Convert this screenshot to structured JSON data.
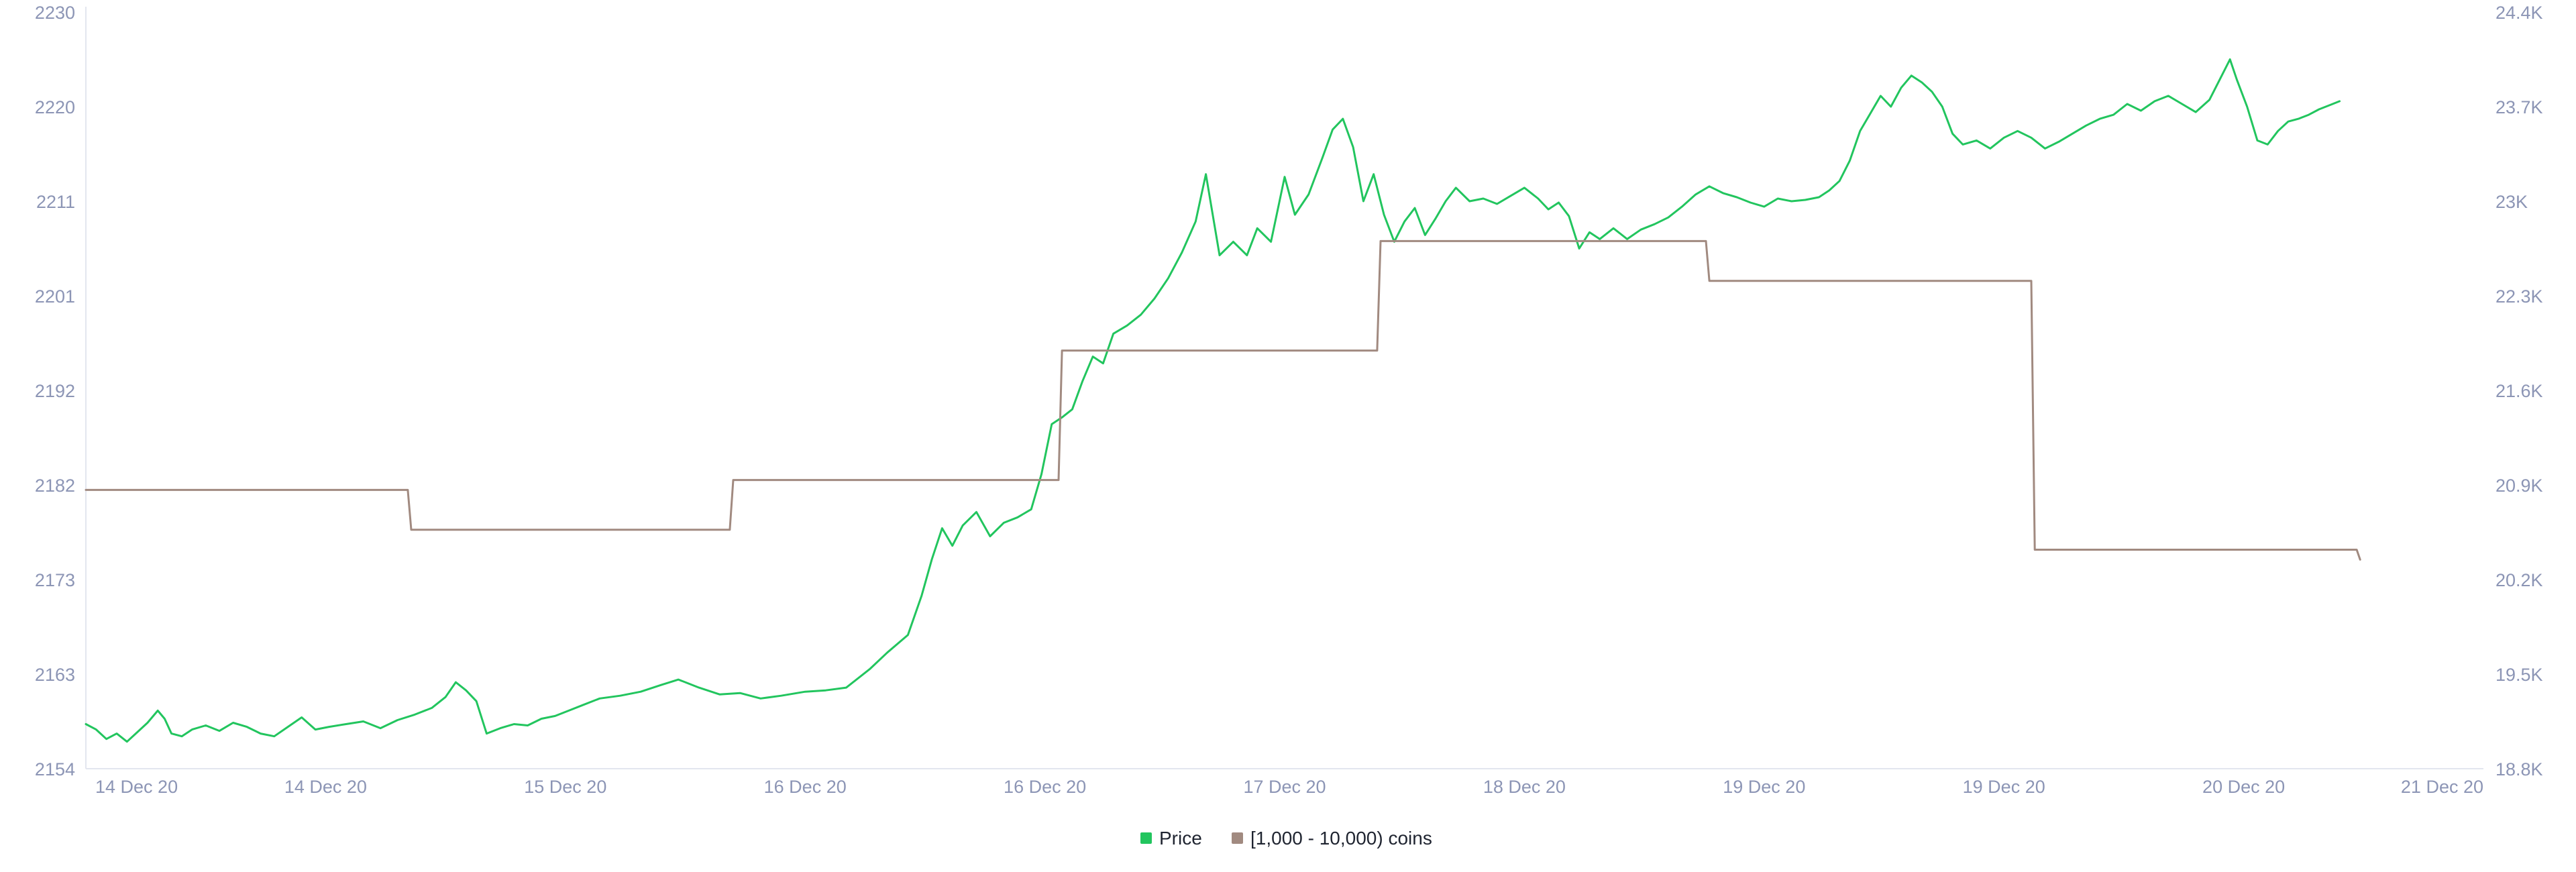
{
  "chart_data": {
    "type": "line",
    "x_ticks": [
      "14 Dec 20",
      "14 Dec 20",
      "15 Dec 20",
      "16 Dec 20",
      "16 Dec 20",
      "17 Dec 20",
      "18 Dec 20",
      "19 Dec 20",
      "19 Dec 20",
      "20 Dec 20",
      "21 Dec 20"
    ],
    "y_left_ticks": [
      "2230",
      "2220",
      "2211",
      "2201",
      "2192",
      "2182",
      "2173",
      "2163",
      "2154"
    ],
    "y_right_ticks": [
      "24.4K",
      "23.7K",
      "23K",
      "22.3K",
      "21.6K",
      "20.9K",
      "20.2K",
      "19.5K",
      "18.8K"
    ],
    "y_left_range": [
      2154,
      2230
    ],
    "y_right_range": [
      18800,
      24400
    ],
    "x_range_days": [
      0,
      7
    ],
    "grid": false,
    "legend_position": "bottom-center",
    "series": [
      {
        "name": "Price",
        "axis": "right",
        "color": "#22c55e",
        "points": [
          [
            0.0,
            19130
          ],
          [
            0.03,
            19090
          ],
          [
            0.06,
            19020
          ],
          [
            0.09,
            19060
          ],
          [
            0.12,
            19000
          ],
          [
            0.15,
            19070
          ],
          [
            0.18,
            19140
          ],
          [
            0.21,
            19230
          ],
          [
            0.23,
            19170
          ],
          [
            0.25,
            19060
          ],
          [
            0.28,
            19040
          ],
          [
            0.31,
            19090
          ],
          [
            0.35,
            19120
          ],
          [
            0.39,
            19080
          ],
          [
            0.43,
            19140
          ],
          [
            0.47,
            19110
          ],
          [
            0.51,
            19060
          ],
          [
            0.55,
            19040
          ],
          [
            0.59,
            19110
          ],
          [
            0.63,
            19180
          ],
          [
            0.67,
            19090
          ],
          [
            0.71,
            19110
          ],
          [
            0.76,
            19130
          ],
          [
            0.81,
            19150
          ],
          [
            0.86,
            19100
          ],
          [
            0.91,
            19160
          ],
          [
            0.96,
            19200
          ],
          [
            1.01,
            19250
          ],
          [
            1.05,
            19330
          ],
          [
            1.08,
            19440
          ],
          [
            1.11,
            19380
          ],
          [
            1.14,
            19300
          ],
          [
            1.17,
            19060
          ],
          [
            1.21,
            19100
          ],
          [
            1.25,
            19130
          ],
          [
            1.29,
            19120
          ],
          [
            1.33,
            19170
          ],
          [
            1.37,
            19190
          ],
          [
            1.41,
            19230
          ],
          [
            1.45,
            19270
          ],
          [
            1.5,
            19320
          ],
          [
            1.56,
            19340
          ],
          [
            1.62,
            19370
          ],
          [
            1.68,
            19420
          ],
          [
            1.73,
            19460
          ],
          [
            1.79,
            19400
          ],
          [
            1.85,
            19350
          ],
          [
            1.91,
            19360
          ],
          [
            1.97,
            19320
          ],
          [
            2.03,
            19340
          ],
          [
            2.1,
            19370
          ],
          [
            2.16,
            19380
          ],
          [
            2.22,
            19400
          ],
          [
            2.29,
            19540
          ],
          [
            2.34,
            19660
          ],
          [
            2.4,
            19790
          ],
          [
            2.44,
            20080
          ],
          [
            2.47,
            20350
          ],
          [
            2.5,
            20580
          ],
          [
            2.53,
            20450
          ],
          [
            2.56,
            20600
          ],
          [
            2.6,
            20700
          ],
          [
            2.64,
            20520
          ],
          [
            2.68,
            20620
          ],
          [
            2.72,
            20660
          ],
          [
            2.76,
            20720
          ],
          [
            2.79,
            20980
          ],
          [
            2.82,
            21350
          ],
          [
            2.85,
            21400
          ],
          [
            2.88,
            21460
          ],
          [
            2.91,
            21670
          ],
          [
            2.94,
            21850
          ],
          [
            2.97,
            21800
          ],
          [
            3.0,
            22020
          ],
          [
            3.04,
            22080
          ],
          [
            3.08,
            22160
          ],
          [
            3.12,
            22280
          ],
          [
            3.16,
            22430
          ],
          [
            3.2,
            22620
          ],
          [
            3.24,
            22850
          ],
          [
            3.27,
            23200
          ],
          [
            3.31,
            22600
          ],
          [
            3.35,
            22700
          ],
          [
            3.39,
            22600
          ],
          [
            3.42,
            22800
          ],
          [
            3.46,
            22700
          ],
          [
            3.5,
            23180
          ],
          [
            3.53,
            22900
          ],
          [
            3.57,
            23050
          ],
          [
            3.61,
            23320
          ],
          [
            3.64,
            23530
          ],
          [
            3.67,
            23610
          ],
          [
            3.7,
            23400
          ],
          [
            3.73,
            23000
          ],
          [
            3.76,
            23200
          ],
          [
            3.79,
            22900
          ],
          [
            3.82,
            22700
          ],
          [
            3.85,
            22850
          ],
          [
            3.88,
            22950
          ],
          [
            3.91,
            22750
          ],
          [
            3.94,
            22870
          ],
          [
            3.97,
            23000
          ],
          [
            4.0,
            23100
          ],
          [
            4.04,
            23000
          ],
          [
            4.08,
            23020
          ],
          [
            4.12,
            22980
          ],
          [
            4.16,
            23040
          ],
          [
            4.2,
            23100
          ],
          [
            4.24,
            23020
          ],
          [
            4.27,
            22940
          ],
          [
            4.3,
            22990
          ],
          [
            4.33,
            22890
          ],
          [
            4.36,
            22650
          ],
          [
            4.39,
            22770
          ],
          [
            4.42,
            22720
          ],
          [
            4.46,
            22800
          ],
          [
            4.5,
            22720
          ],
          [
            4.54,
            22790
          ],
          [
            4.58,
            22830
          ],
          [
            4.62,
            22880
          ],
          [
            4.66,
            22960
          ],
          [
            4.7,
            23050
          ],
          [
            4.74,
            23110
          ],
          [
            4.78,
            23060
          ],
          [
            4.82,
            23030
          ],
          [
            4.86,
            22990
          ],
          [
            4.9,
            22960
          ],
          [
            4.94,
            23020
          ],
          [
            4.98,
            23000
          ],
          [
            5.02,
            23010
          ],
          [
            5.06,
            23030
          ],
          [
            5.09,
            23080
          ],
          [
            5.12,
            23150
          ],
          [
            5.15,
            23300
          ],
          [
            5.18,
            23520
          ],
          [
            5.21,
            23650
          ],
          [
            5.24,
            23780
          ],
          [
            5.27,
            23700
          ],
          [
            5.3,
            23840
          ],
          [
            5.33,
            23930
          ],
          [
            5.36,
            23880
          ],
          [
            5.39,
            23810
          ],
          [
            5.42,
            23700
          ],
          [
            5.45,
            23500
          ],
          [
            5.48,
            23420
          ],
          [
            5.52,
            23450
          ],
          [
            5.56,
            23390
          ],
          [
            5.6,
            23470
          ],
          [
            5.64,
            23520
          ],
          [
            5.68,
            23470
          ],
          [
            5.72,
            23390
          ],
          [
            5.76,
            23440
          ],
          [
            5.8,
            23500
          ],
          [
            5.84,
            23560
          ],
          [
            5.88,
            23610
          ],
          [
            5.92,
            23640
          ],
          [
            5.96,
            23720
          ],
          [
            6.0,
            23670
          ],
          [
            6.04,
            23740
          ],
          [
            6.08,
            23780
          ],
          [
            6.12,
            23720
          ],
          [
            6.16,
            23660
          ],
          [
            6.2,
            23750
          ],
          [
            6.23,
            23900
          ],
          [
            6.26,
            24050
          ],
          [
            6.28,
            23900
          ],
          [
            6.31,
            23700
          ],
          [
            6.34,
            23450
          ],
          [
            6.37,
            23420
          ],
          [
            6.4,
            23520
          ],
          [
            6.43,
            23590
          ],
          [
            6.46,
            23610
          ],
          [
            6.49,
            23640
          ],
          [
            6.52,
            23680
          ],
          [
            6.55,
            23710
          ],
          [
            6.58,
            23740
          ]
        ]
      },
      {
        "name": "[1,000 - 10,000) coins",
        "axis": "left",
        "color": "#a18a80",
        "points": [
          [
            0.0,
            2182
          ],
          [
            0.94,
            2182
          ],
          [
            0.95,
            2178
          ],
          [
            1.88,
            2178
          ],
          [
            1.89,
            2183
          ],
          [
            2.84,
            2183
          ],
          [
            2.85,
            2196
          ],
          [
            3.77,
            2196
          ],
          [
            3.78,
            2207
          ],
          [
            4.73,
            2207
          ],
          [
            4.74,
            2203
          ],
          [
            5.68,
            2203
          ],
          [
            5.69,
            2176
          ],
          [
            6.63,
            2176
          ],
          [
            6.64,
            2175
          ]
        ]
      }
    ]
  }
}
